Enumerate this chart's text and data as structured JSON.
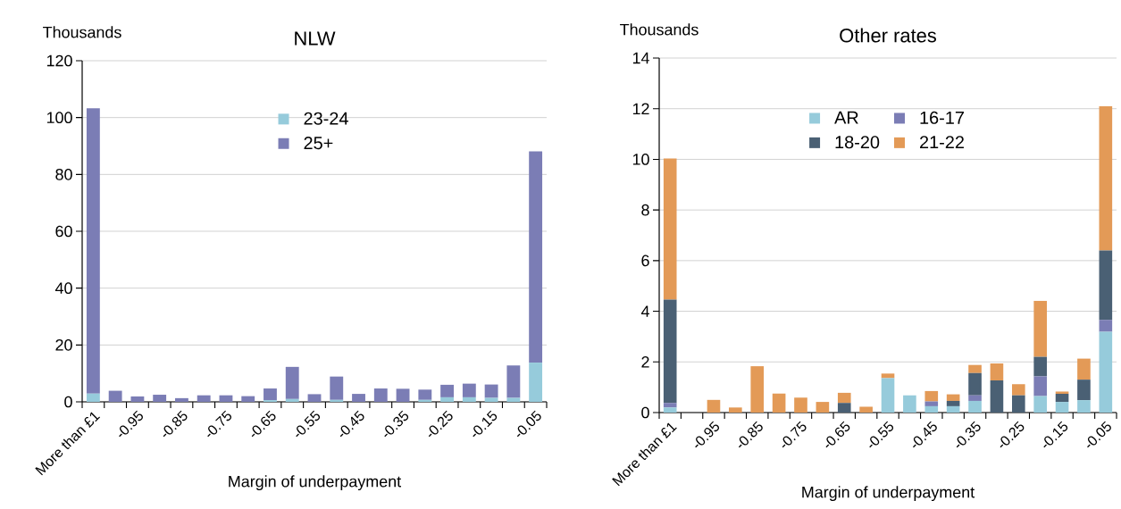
{
  "chart_data": [
    {
      "type": "bar",
      "title": "NLW",
      "ylabel": "Thousands",
      "xlabel": "Margin of underpayment",
      "stacked": true,
      "grid": "y",
      "legend": "top",
      "categories": [
        "More than £1",
        null,
        "-0.95",
        null,
        "-0.85",
        null,
        "-0.75",
        null,
        "-0.65",
        null,
        "-0.55",
        null,
        "-0.45",
        null,
        "-0.35",
        null,
        "-0.25",
        null,
        "-0.15",
        null,
        "-0.05"
      ],
      "ylim": [
        0,
        120
      ],
      "yticks": [
        0,
        20,
        40,
        60,
        80,
        100,
        120
      ],
      "series": [
        {
          "name": "23-24",
          "color": "#96cbdb",
          "values": [
            2.9,
            0,
            0,
            0,
            0,
            0,
            0,
            0,
            0.6,
            1.0,
            0,
            0.7,
            0,
            null,
            null,
            0.7,
            1.6,
            1.6,
            1.4,
            1.4,
            13.8
          ]
        },
        {
          "name": "25+",
          "color": "#7b7db5",
          "values": [
            100.4,
            3.9,
            1.9,
            2.5,
            1.3,
            2.3,
            2.3,
            2.0,
            4.1,
            11.3,
            2.7,
            8.2,
            2.8,
            4.7,
            4.6,
            3.6,
            4.4,
            4.8,
            4.7,
            11.4,
            74.3
          ]
        }
      ]
    },
    {
      "type": "bar",
      "title": "Other rates",
      "ylabel": "Thousands",
      "xlabel": "Margin of underpayment",
      "stacked": true,
      "grid": "y",
      "legend": "top",
      "categories": [
        "More than £1",
        null,
        "-0.95",
        null,
        "-0.85",
        null,
        "-0.75",
        null,
        "-0.65",
        null,
        "-0.55",
        null,
        "-0.45",
        null,
        "-0.35",
        null,
        "-0.25",
        null,
        "-0.15",
        null,
        "-0.05"
      ],
      "ylim": [
        0,
        14
      ],
      "yticks": [
        0,
        2,
        4,
        6,
        8,
        10,
        12,
        14
      ],
      "series": [
        {
          "name": "AR",
          "color": "#96cbdb",
          "values": [
            0.2,
            0,
            0,
            0,
            0,
            0,
            0,
            0,
            0,
            0,
            1.36,
            0.68,
            0.25,
            0.25,
            0.46,
            0,
            0,
            0.65,
            0.42,
            0.49,
            3.19
          ]
        },
        {
          "name": "16-17",
          "color": "#7b7db5",
          "values": [
            0.18,
            0,
            0,
            0,
            0,
            0,
            0,
            0,
            0,
            0,
            0,
            0,
            0.19,
            0,
            0.22,
            0,
            0,
            0.78,
            0,
            0,
            0.47
          ]
        },
        {
          "name": "18-20",
          "color": "#4a6074",
          "values": [
            4.08,
            0,
            0,
            0,
            0,
            0,
            0,
            0,
            0.38,
            0,
            0,
            0,
            0,
            0.21,
            0.88,
            1.27,
            0.68,
            0.77,
            0.32,
            0.81,
            2.74
          ]
        },
        {
          "name": "21-22",
          "color": "#e39a57",
          "values": [
            5.57,
            0,
            0.5,
            0.2,
            1.83,
            0.75,
            0.59,
            0.42,
            0.4,
            0.23,
            0.18,
            0,
            0.41,
            0.26,
            0.32,
            0.67,
            0.44,
            2.21,
            0.09,
            0.83,
            5.7
          ]
        }
      ]
    }
  ]
}
